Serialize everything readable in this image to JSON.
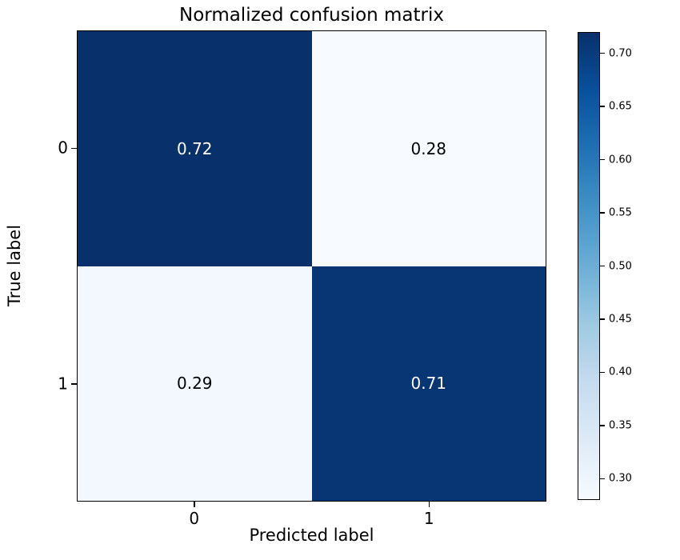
{
  "chart_data": {
    "type": "heatmap",
    "title": "Normalized confusion matrix",
    "xlabel": "Predicted label",
    "ylabel": "True label",
    "x_tick_labels": [
      "0",
      "1"
    ],
    "y_tick_labels": [
      "0",
      "1"
    ],
    "rows": [
      [
        0.72,
        0.28
      ],
      [
        0.29,
        0.71
      ]
    ],
    "cell_labels": [
      [
        "0.72",
        "0.28"
      ],
      [
        "0.29",
        "0.71"
      ]
    ],
    "colormap": "Blues",
    "vmin": 0.28,
    "vmax": 0.72,
    "colorbar_ticks": [
      0.3,
      0.35,
      0.4,
      0.45,
      0.5,
      0.55,
      0.6,
      0.65,
      0.7
    ],
    "colorbar_tick_labels": [
      "0.30",
      "0.35",
      "0.40",
      "0.45",
      "0.50",
      "0.55",
      "0.60",
      "0.65",
      "0.70"
    ],
    "legend_position": "right-colorbar",
    "grid": false,
    "colors": {
      "cmap_stops": [
        "#f7fbff",
        "#deebf7",
        "#c6dbef",
        "#9ecae1",
        "#6baed6",
        "#4292c6",
        "#2171b5",
        "#08519c",
        "#08306b"
      ],
      "cell_text_on_dark": "#ffffff",
      "cell_text_on_light": "#000000",
      "axis_color": "#000000",
      "background": "#ffffff"
    }
  }
}
